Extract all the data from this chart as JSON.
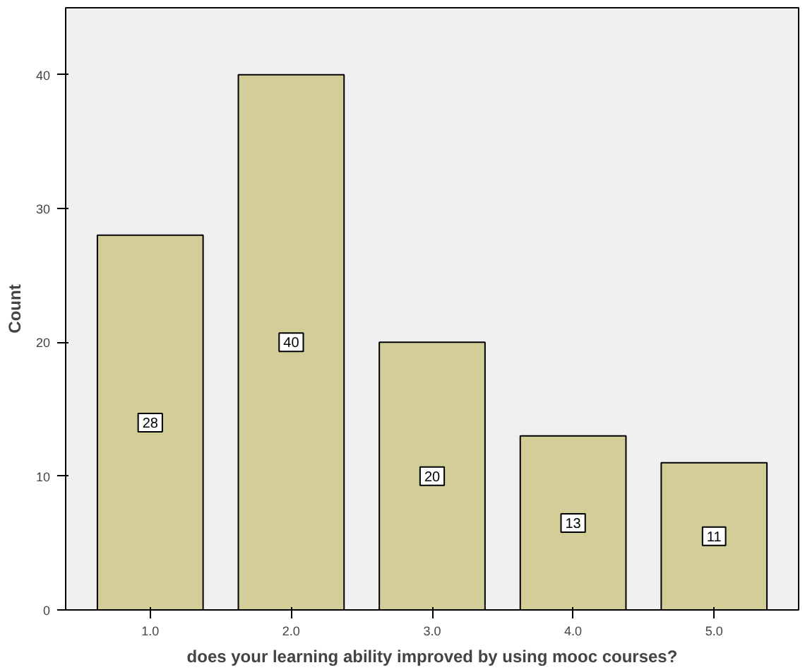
{
  "chart_data": {
    "type": "bar",
    "xlabel": "does your learning ability improved by using mooc courses?",
    "ylabel": "Count",
    "categories": [
      "1.0",
      "2.0",
      "3.0",
      "4.0",
      "5.0"
    ],
    "values": [
      28,
      40,
      20,
      13,
      11
    ],
    "color": "#d3ce97",
    "ylim": [
      0,
      45
    ],
    "yticks": [
      0,
      10,
      20,
      30,
      40
    ],
    "grid": false,
    "data_labels": true
  }
}
